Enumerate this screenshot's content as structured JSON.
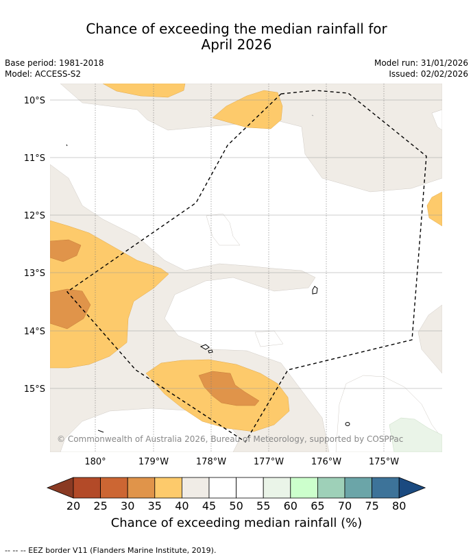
{
  "title": {
    "line1": "Chance of exceeding the median rainfall for",
    "line2": "April 2026"
  },
  "meta": {
    "base_period": "Base period: 1981-2018",
    "model": "Model: ACCESS-S2",
    "model_run": "Model run: 31/01/2026",
    "issued": "Issued: 02/02/2026"
  },
  "map": {
    "lat_labels": [
      "10°S",
      "11°S",
      "12°S",
      "13°S",
      "14°S",
      "15°S"
    ],
    "lon_labels": [
      "180°",
      "179°W",
      "178°W",
      "177°W",
      "176°W",
      "175°W"
    ],
    "copyright": "© Commonwealth of Australia 2026, Bureau of Meteorology, supported by COSPPac",
    "eez_region": "EEZ boundary (dashed)"
  },
  "colorbar": {
    "ticks": [
      "20",
      "25",
      "30",
      "35",
      "40",
      "45",
      "50",
      "55",
      "60",
      "65",
      "70",
      "75",
      "80"
    ],
    "colors": [
      "#b34a28",
      "#cc6633",
      "#e0944a",
      "#fdca6b",
      "#f0ece6",
      "#ffffff",
      "#ffffff",
      "#eaf4e8",
      "#ccffcc",
      "#9ed0b8",
      "#6ba5a8",
      "#3d7399"
    ],
    "extend_low_color": "#8a3a23",
    "extend_high_color": "#1b4a80",
    "label": "Chance of exceeding median rainfall (%)"
  },
  "colors": {
    "c35": "#fdca6b",
    "c30": "#e0944a",
    "c45": "#f0ece6",
    "c55": "#eaf4e8",
    "grid": "#999999"
  },
  "footer": "-- -- -- EEZ border V11 (Flanders Marine Institute, 2019)."
}
